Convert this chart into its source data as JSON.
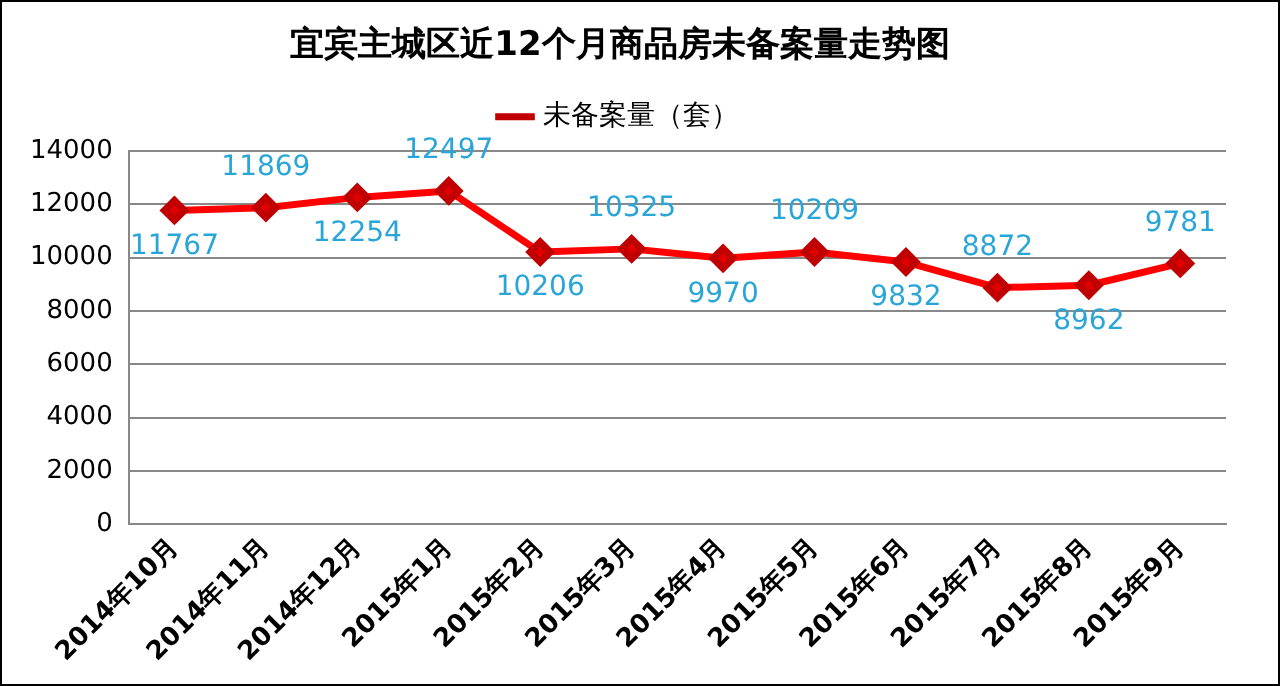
{
  "chart_data": {
    "type": "line",
    "title": "宜宾主城区近12个月商品房未备案量走势图",
    "categories": [
      "2014年10月",
      "2014年11月",
      "2014年12月",
      "2015年1月",
      "2015年2月",
      "2015年3月",
      "2015年4月",
      "2015年5月",
      "2015年6月",
      "2015年7月",
      "2015年8月",
      "2015年9月"
    ],
    "series": [
      {
        "name": "未备案量（套）",
        "color": "#ff0000",
        "values": [
          11767,
          11869,
          12254,
          12497,
          10206,
          10325,
          9970,
          10209,
          9832,
          8872,
          8962,
          9781
        ]
      }
    ],
    "ylim": [
      0,
      14000
    ],
    "yticks": [
      0,
      2000,
      4000,
      6000,
      8000,
      10000,
      12000,
      14000
    ],
    "grid": "y",
    "legend": "top",
    "marker": "diamond",
    "line_style": "solid",
    "data_labels": true
  }
}
